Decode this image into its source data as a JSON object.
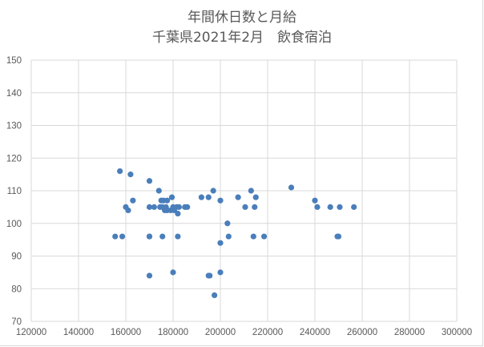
{
  "chart_data": {
    "type": "scatter",
    "title_line1": "年間休日数と月給",
    "title_line2": "千葉県2021年2月　飲食宿泊",
    "xlim": [
      120000,
      300000
    ],
    "ylim": [
      70,
      150
    ],
    "x_ticks": [
      "120000",
      "140000",
      "160000",
      "180000",
      "200000",
      "220000",
      "240000",
      "260000",
      "280000",
      "300000"
    ],
    "y_ticks": [
      "70",
      "80",
      "90",
      "100",
      "110",
      "120",
      "130",
      "140",
      "150"
    ],
    "grid": true,
    "marker_color": "#4a7ebb",
    "points": [
      [
        155500,
        96
      ],
      [
        157500,
        116
      ],
      [
        158500,
        96
      ],
      [
        160000,
        105
      ],
      [
        161000,
        104
      ],
      [
        162000,
        115
      ],
      [
        163000,
        107
      ],
      [
        170000,
        113
      ],
      [
        170000,
        105
      ],
      [
        170000,
        96
      ],
      [
        170000,
        96
      ],
      [
        170000,
        84
      ],
      [
        172000,
        105
      ],
      [
        174000,
        110
      ],
      [
        174500,
        105
      ],
      [
        175000,
        107
      ],
      [
        175500,
        96
      ],
      [
        175500,
        105
      ],
      [
        176000,
        107
      ],
      [
        176500,
        104
      ],
      [
        177000,
        105
      ],
      [
        177500,
        107
      ],
      [
        177500,
        104
      ],
      [
        179000,
        104
      ],
      [
        179500,
        108
      ],
      [
        180000,
        105
      ],
      [
        180000,
        85
      ],
      [
        180500,
        104
      ],
      [
        181500,
        105
      ],
      [
        182000,
        103
      ],
      [
        182000,
        96
      ],
      [
        182500,
        105
      ],
      [
        185000,
        105
      ],
      [
        186000,
        105
      ],
      [
        192000,
        108
      ],
      [
        195000,
        108
      ],
      [
        195000,
        84
      ],
      [
        195500,
        84
      ],
      [
        197000,
        110
      ],
      [
        197500,
        78
      ],
      [
        200000,
        107
      ],
      [
        200000,
        94
      ],
      [
        200000,
        85
      ],
      [
        203000,
        100
      ],
      [
        203500,
        96
      ],
      [
        207500,
        108
      ],
      [
        210500,
        105
      ],
      [
        213000,
        110
      ],
      [
        214000,
        96
      ],
      [
        214500,
        105
      ],
      [
        215000,
        108
      ],
      [
        218500,
        96
      ],
      [
        230000,
        111
      ],
      [
        240000,
        107
      ],
      [
        241000,
        105
      ],
      [
        246500,
        105
      ],
      [
        249500,
        96
      ],
      [
        250000,
        96
      ],
      [
        250500,
        105
      ],
      [
        256500,
        105
      ]
    ]
  }
}
